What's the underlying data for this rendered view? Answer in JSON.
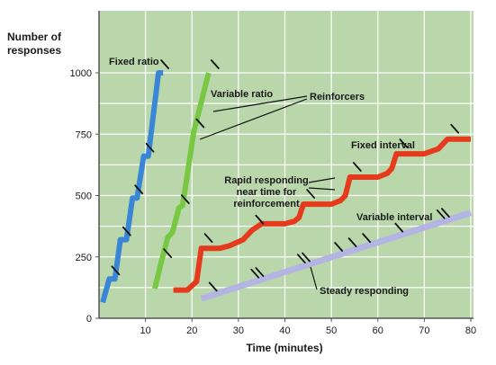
{
  "chart_data": {
    "type": "line",
    "title": "",
    "ylabel_lines": [
      "Number of",
      "responses"
    ],
    "xlabel": "Time (minutes)",
    "xlim": [
      0,
      80
    ],
    "ylim": [
      0,
      1000
    ],
    "xticks": [
      10,
      20,
      30,
      40,
      50,
      60,
      70,
      80
    ],
    "yticks": [
      0,
      250,
      500,
      750,
      1000
    ],
    "grid": true,
    "background_color": "#b9d7aa",
    "gridline_color": "#ffffff",
    "series": [
      {
        "name": "Fixed ratio",
        "color": "#3a86d6",
        "points": [
          [
            0.8,
            65
          ],
          [
            2.2,
            160
          ],
          [
            3.4,
            160
          ],
          [
            4.6,
            320
          ],
          [
            5.9,
            320
          ],
          [
            7.2,
            490
          ],
          [
            8.2,
            490
          ],
          [
            9.6,
            660
          ],
          [
            10.6,
            660
          ],
          [
            12.8,
            1000
          ],
          [
            13.8,
            1000
          ]
        ],
        "reinforcers_x": [
          2.2,
          4.6,
          7.2,
          9.6,
          12.8
        ]
      },
      {
        "name": "Variable ratio",
        "color": "#78c843",
        "points": [
          [
            12.0,
            120
          ],
          [
            13.4,
            230
          ],
          [
            14.8,
            330
          ],
          [
            15.8,
            350
          ],
          [
            17.2,
            450
          ],
          [
            18.0,
            460
          ],
          [
            20.4,
            760
          ],
          [
            23.6,
            1000
          ]
        ],
        "reinforcers_x": [
          13.4,
          17.2,
          20.4,
          23.6
        ]
      },
      {
        "name": "Fixed interval",
        "color": "#e63a1c",
        "points": [
          [
            16,
            115
          ],
          [
            19,
            115
          ],
          [
            21,
            150
          ],
          [
            22,
            285
          ],
          [
            26,
            285
          ],
          [
            28,
            295
          ],
          [
            31,
            320
          ],
          [
            33,
            360
          ],
          [
            35,
            385
          ],
          [
            40,
            385
          ],
          [
            42,
            395
          ],
          [
            43,
            410
          ],
          [
            44,
            465
          ],
          [
            50,
            465
          ],
          [
            52,
            480
          ],
          [
            53,
            500
          ],
          [
            54,
            575
          ],
          [
            60,
            575
          ],
          [
            62,
            590
          ],
          [
            63,
            610
          ],
          [
            64,
            670
          ],
          [
            70,
            670
          ],
          [
            73,
            690
          ],
          [
            75,
            730
          ],
          [
            80,
            730
          ]
        ],
        "reinforcers_x": [
          22,
          33,
          44,
          54,
          64,
          75
        ]
      },
      {
        "name": "Variable interval",
        "color": "#b4b4e4",
        "points": [
          [
            22,
            80
          ],
          [
            80,
            430
          ]
        ],
        "reinforcers_x": [
          23,
          32,
          33,
          42,
          43,
          50,
          53,
          56,
          63,
          72,
          73
        ]
      }
    ],
    "annotations": {
      "reinforcers": "Reinforcers",
      "rapid_responding": [
        "Rapid responding",
        "near time for",
        "reinforcement"
      ],
      "steady_responding": "Steady responding"
    }
  }
}
